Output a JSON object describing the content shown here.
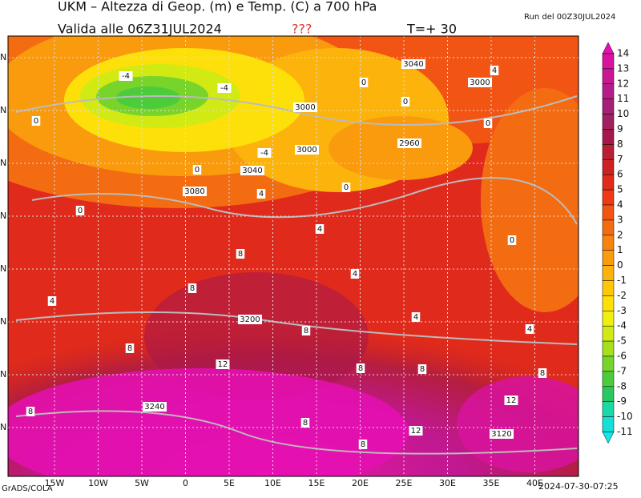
{
  "header": {
    "title": "UKM – Altezza di Geop. (m) e Temp. (C) a 700 hPa",
    "valid": "Valida alle 06Z31JUL2024",
    "flag": "???",
    "step": "T=+ 30",
    "run": "Run del 00Z30JUL2024"
  },
  "map": {
    "lon_labels": [
      "15W",
      "10W",
      "5W",
      "0",
      "5E",
      "10E",
      "15E",
      "20E",
      "25E",
      "30E",
      "35E",
      "40E"
    ],
    "lat_labels": [
      "N",
      "N",
      "N",
      "N",
      "N",
      "N",
      "N",
      "N"
    ],
    "contour_labels": [
      "-4",
      "-4",
      "0",
      "0",
      "0",
      "3040",
      "4",
      "3000",
      "0",
      "0",
      "3000",
      "0",
      "2960",
      "3000",
      "-4",
      "3040",
      "0",
      "3080",
      "4",
      "4",
      "0",
      "8",
      "4",
      "8",
      "4",
      "3200",
      "4",
      "4",
      "8",
      "8",
      "12",
      "8",
      "8",
      "8",
      "12",
      "3240",
      "8",
      "12",
      "8",
      "3120",
      "8"
    ]
  },
  "colorbar": {
    "levels": [
      14,
      13,
      12,
      11,
      10,
      9,
      8,
      7,
      6,
      5,
      4,
      3,
      2,
      1,
      0,
      -1,
      -2,
      -3,
      -4,
      -5,
      -6,
      -7,
      -8,
      -9,
      -10,
      -11
    ],
    "colors": [
      "#e60fb4",
      "#d8139f",
      "#c81893",
      "#b81c88",
      "#a81f78",
      "#a02060",
      "#a8174a",
      "#b91e32",
      "#cc2222",
      "#e02b1c",
      "#ee3b16",
      "#f25513",
      "#f46c12",
      "#f78410",
      "#fa9b0e",
      "#fcb40c",
      "#fdc80a",
      "#fde00a",
      "#f0ef10",
      "#d2ea14",
      "#a6e01c",
      "#78d42a",
      "#4ccc3a",
      "#2ac860",
      "#1cd8a8",
      "#14e0d8",
      "#10e8f0"
    ]
  },
  "footer": {
    "left": "GrADS/COLA",
    "right": "2024-07-30-07:25"
  }
}
